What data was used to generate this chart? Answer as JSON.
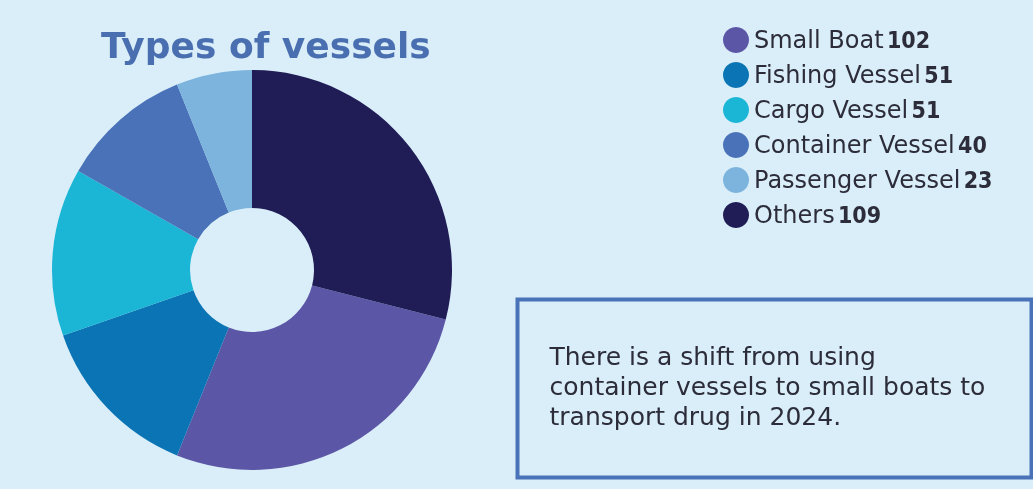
{
  "chart_data": {
    "type": "donut",
    "title": "Types of vessels",
    "categories": [
      "Small Boat",
      "Fishing Vessel",
      "Cargo Vessel",
      "Container Vessel",
      "Passenger Vessel",
      "Others"
    ],
    "values": [
      102,
      51,
      51,
      40,
      23,
      109
    ],
    "colors": [
      "#5b56a5",
      "#0b74b4",
      "#1bb5d6",
      "#4a72b8",
      "#7db4de",
      "#1f1c56"
    ],
    "legend": "top right",
    "data_labels": true,
    "annotations": [
      "There is a shift from using container vessels to small boats to transport drug in 2024."
    ]
  }
}
